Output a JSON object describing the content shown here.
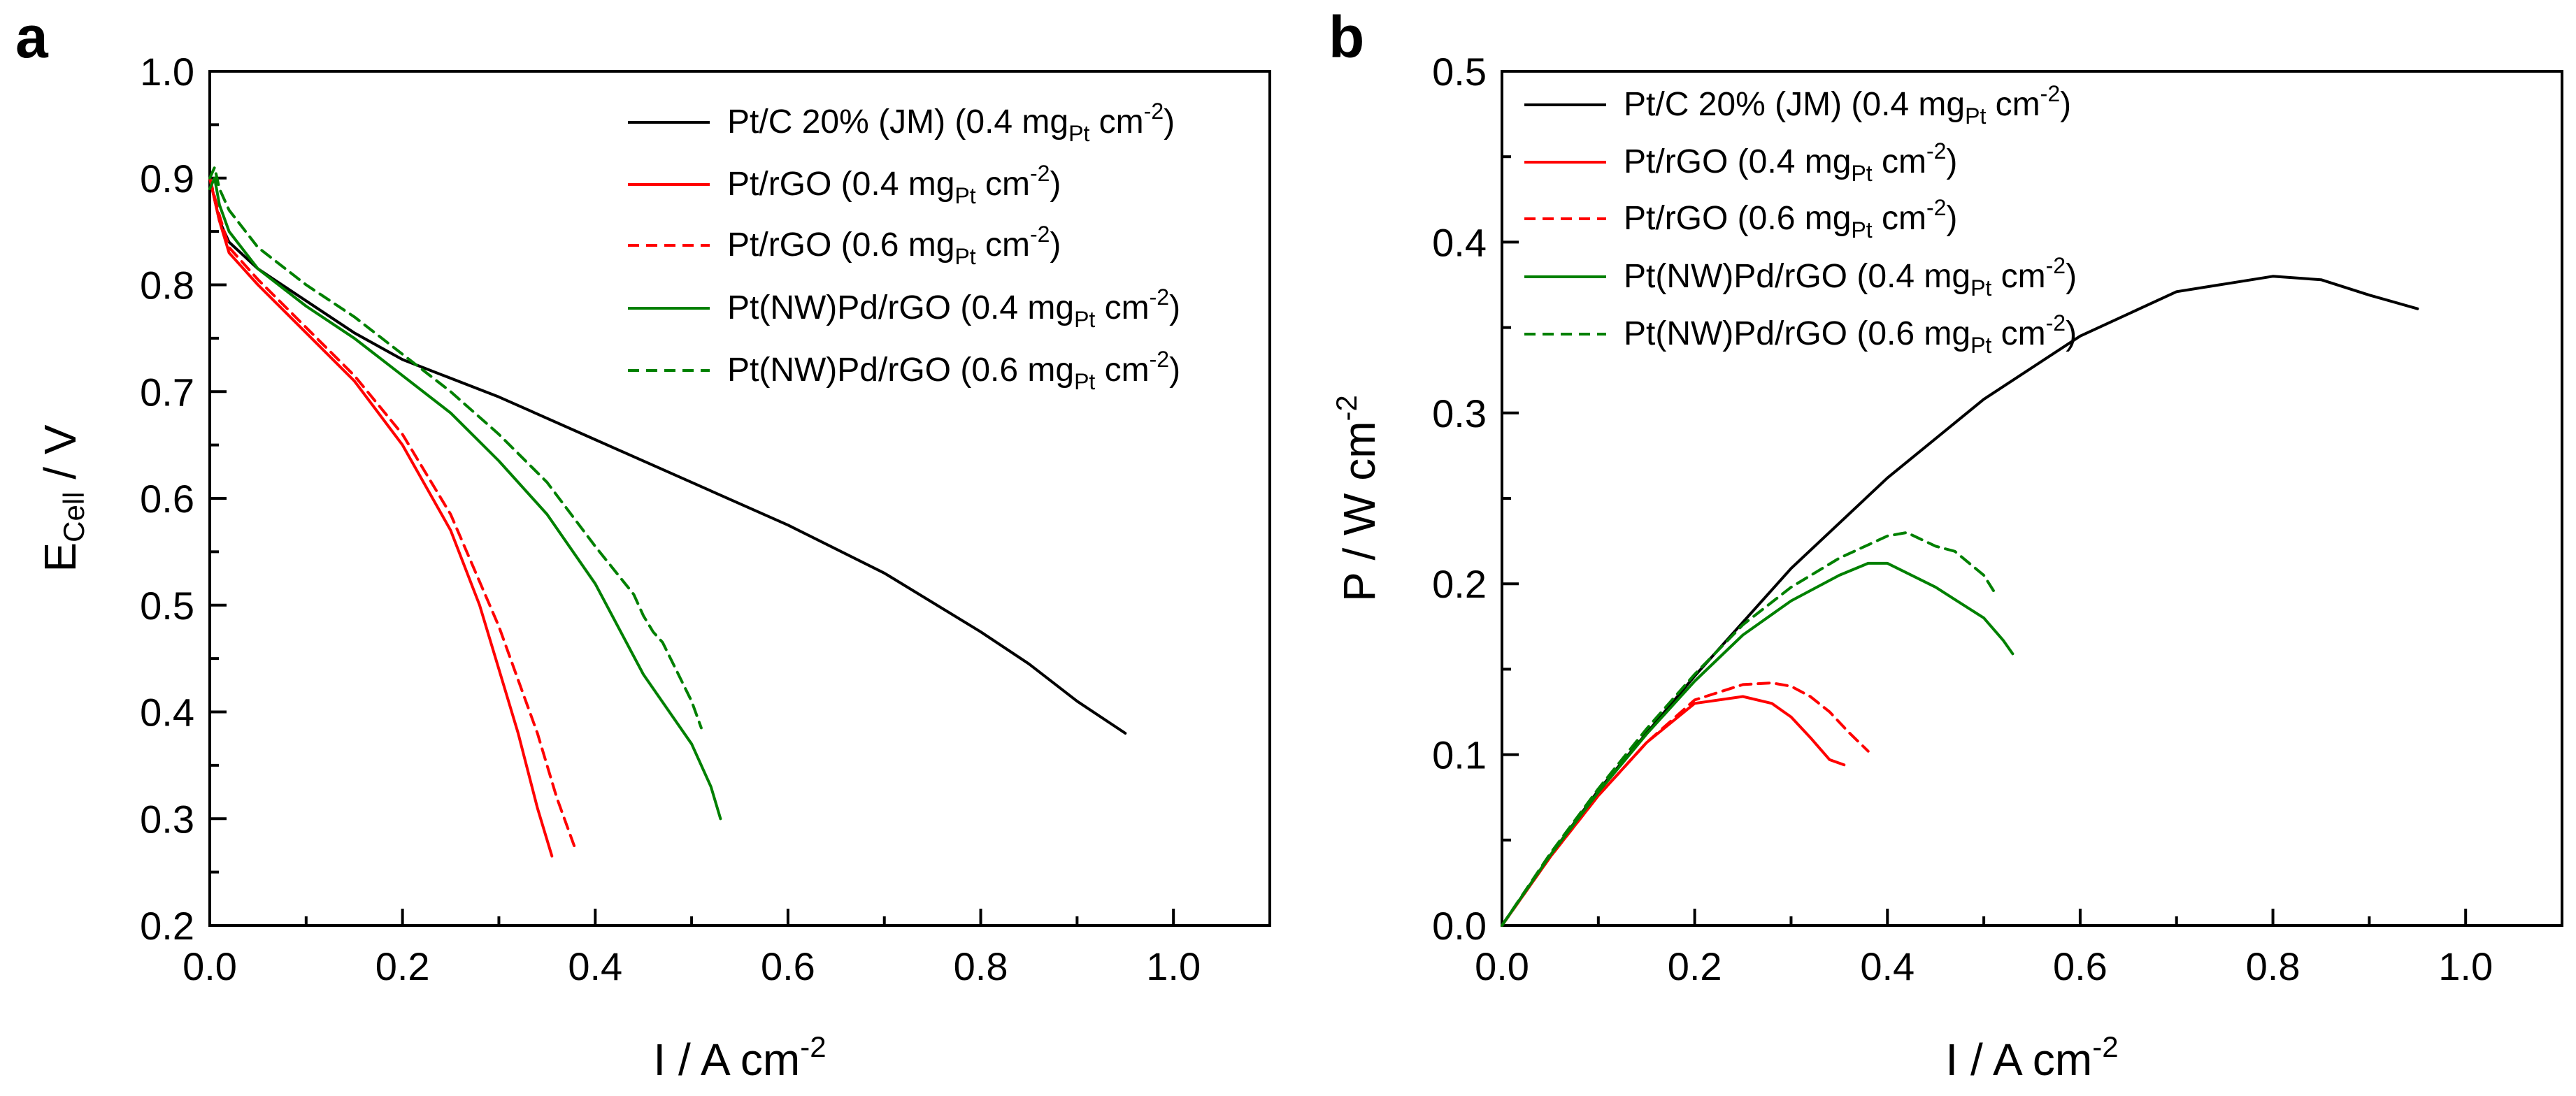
{
  "chart_data": [
    {
      "panel_label": "a",
      "type": "line",
      "xlabel": {
        "main": "I / A cm",
        "sup": "-2"
      },
      "ylabel": {
        "main": "E",
        "sub": "Cell",
        "rest": " / V"
      },
      "xlim": [
        0,
        1.1
      ],
      "ylim": [
        0.2,
        1.0
      ],
      "xticks": [
        0.0,
        0.2,
        0.4,
        0.6,
        0.8,
        1.0
      ],
      "xtick_labels": [
        "0.0",
        "0.2",
        "0.4",
        "0.6",
        "0.8",
        "1.0"
      ],
      "yticks": [
        0.2,
        0.3,
        0.4,
        0.5,
        0.6,
        0.7,
        0.8,
        0.9,
        1.0
      ],
      "ytick_labels": [
        "0.2",
        "0.3",
        "0.4",
        "0.5",
        "0.6",
        "0.7",
        "0.8",
        "0.9",
        "1.0"
      ],
      "grid": false,
      "legend_position": "top-right",
      "series": [
        {
          "name": "Pt/C 20% (JM) (0.4 mgPt cm-2)",
          "label_main": "Pt/C 20% (JM) (0.4 mg",
          "label_sub": "Pt",
          "label_tail": " cm",
          "label_sup": "-2",
          "label_end": ")",
          "color": "#000000",
          "dash": "solid",
          "x": [
            0.0,
            0.01,
            0.02,
            0.05,
            0.1,
            0.15,
            0.2,
            0.3,
            0.4,
            0.5,
            0.6,
            0.7,
            0.8,
            0.85,
            0.9,
            0.95
          ],
          "y": [
            0.9,
            0.86,
            0.84,
            0.815,
            0.785,
            0.755,
            0.73,
            0.695,
            0.655,
            0.615,
            0.575,
            0.53,
            0.475,
            0.445,
            0.41,
            0.38
          ]
        },
        {
          "name": "Pt/rGO (0.4 mgPt cm-2)",
          "label_main": "Pt/rGO (0.4 mg",
          "label_sub": "Pt",
          "label_tail": " cm",
          "label_sup": "-2",
          "label_end": ")",
          "color": "#ff0000",
          "dash": "solid",
          "x": [
            0.0,
            0.01,
            0.02,
            0.05,
            0.1,
            0.15,
            0.2,
            0.25,
            0.28,
            0.3,
            0.32,
            0.34,
            0.355
          ],
          "y": [
            0.9,
            0.86,
            0.83,
            0.8,
            0.755,
            0.71,
            0.65,
            0.57,
            0.5,
            0.44,
            0.38,
            0.31,
            0.265
          ]
        },
        {
          "name": "Pt/rGO (0.6 mgPt cm-2)",
          "label_main": "Pt/rGO (0.6 mg",
          "label_sub": "Pt",
          "label_tail": " cm",
          "label_sup": "-2",
          "label_end": ")",
          "color": "#ff0000",
          "dash": "dashed",
          "x": [
            0.0,
            0.01,
            0.02,
            0.05,
            0.1,
            0.15,
            0.2,
            0.25,
            0.3,
            0.32,
            0.34,
            0.36,
            0.38
          ],
          "y": [
            0.9,
            0.865,
            0.835,
            0.805,
            0.76,
            0.715,
            0.66,
            0.585,
            0.48,
            0.43,
            0.38,
            0.32,
            0.27
          ]
        },
        {
          "name": "Pt(NW)Pd/rGO (0.4 mgPt cm-2)",
          "label_main": "Pt(NW)Pd/rGO (0.4 mg",
          "label_sub": "Pt",
          "label_tail": " cm",
          "label_sup": "-2",
          "label_end": ")",
          "color": "#008000",
          "dash": "solid",
          "x": [
            0.0,
            0.005,
            0.01,
            0.02,
            0.05,
            0.1,
            0.15,
            0.2,
            0.25,
            0.3,
            0.35,
            0.4,
            0.45,
            0.5,
            0.52,
            0.53
          ],
          "y": [
            0.89,
            0.9,
            0.875,
            0.85,
            0.815,
            0.78,
            0.75,
            0.715,
            0.68,
            0.635,
            0.585,
            0.52,
            0.435,
            0.37,
            0.33,
            0.3
          ]
        },
        {
          "name": "Pt(NW)Pd/rGO (0.6 mgPt cm-2)",
          "label_main": "Pt(NW)Pd/rGO (0.6 mg",
          "label_sub": "Pt",
          "label_tail": " cm",
          "label_sup": "-2",
          "label_end": ")",
          "color": "#008000",
          "dash": "dashed",
          "x": [
            0.0,
            0.005,
            0.01,
            0.02,
            0.05,
            0.1,
            0.15,
            0.2,
            0.25,
            0.3,
            0.35,
            0.4,
            0.44,
            0.45,
            0.46,
            0.47,
            0.5,
            0.51
          ],
          "y": [
            0.9,
            0.91,
            0.89,
            0.87,
            0.835,
            0.8,
            0.77,
            0.735,
            0.7,
            0.66,
            0.615,
            0.555,
            0.51,
            0.49,
            0.475,
            0.465,
            0.41,
            0.385
          ]
        }
      ]
    },
    {
      "panel_label": "b",
      "type": "line",
      "xlabel": {
        "main": "I / A cm",
        "sup": "-2"
      },
      "ylabel": {
        "main": "P / W cm",
        "sup": "-2"
      },
      "xlim": [
        0,
        1.1
      ],
      "ylim": [
        0.0,
        0.5
      ],
      "xticks": [
        0.0,
        0.2,
        0.4,
        0.6,
        0.8,
        1.0
      ],
      "xtick_labels": [
        "0.0",
        "0.2",
        "0.4",
        "0.6",
        "0.8",
        "1.0"
      ],
      "yticks": [
        0.0,
        0.1,
        0.2,
        0.3,
        0.4,
        0.5
      ],
      "ytick_labels": [
        "0.0",
        "0.1",
        "0.2",
        "0.3",
        "0.4",
        "0.5"
      ],
      "grid": false,
      "legend_position": "top-left",
      "series": [
        {
          "name": "Pt/C 20% (JM) (0.4 mgPt cm-2)",
          "label_main": "Pt/C 20% (JM) (0.4 mg",
          "label_sub": "Pt",
          "label_tail": " cm",
          "label_sup": "-2",
          "label_end": ")",
          "color": "#000000",
          "dash": "solid",
          "x": [
            0.0,
            0.05,
            0.1,
            0.2,
            0.3,
            0.4,
            0.5,
            0.6,
            0.7,
            0.8,
            0.85,
            0.9,
            0.95
          ],
          "y": [
            0.0,
            0.041,
            0.079,
            0.146,
            0.209,
            0.262,
            0.308,
            0.345,
            0.371,
            0.38,
            0.378,
            0.369,
            0.361
          ]
        },
        {
          "name": "Pt/rGO (0.4 mgPt cm-2)",
          "label_main": "Pt/rGO (0.4 mg",
          "label_sub": "Pt",
          "label_tail": " cm",
          "label_sup": "-2",
          "label_end": ")",
          "color": "#ff0000",
          "dash": "solid",
          "x": [
            0.0,
            0.05,
            0.1,
            0.15,
            0.2,
            0.25,
            0.28,
            0.3,
            0.32,
            0.34,
            0.355
          ],
          "y": [
            0.0,
            0.04,
            0.076,
            0.107,
            0.13,
            0.134,
            0.13,
            0.122,
            0.11,
            0.097,
            0.094
          ]
        },
        {
          "name": "Pt/rGO (0.6 mgPt cm-2)",
          "label_main": "Pt/rGO (0.6 mg",
          "label_sub": "Pt",
          "label_tail": " cm",
          "label_sup": "-2",
          "label_end": ")",
          "color": "#ff0000",
          "dash": "dashed",
          "x": [
            0.0,
            0.05,
            0.1,
            0.15,
            0.2,
            0.25,
            0.28,
            0.3,
            0.32,
            0.34,
            0.36,
            0.38
          ],
          "y": [
            0.0,
            0.04,
            0.076,
            0.107,
            0.132,
            0.141,
            0.142,
            0.14,
            0.134,
            0.125,
            0.113,
            0.102
          ]
        },
        {
          "name": "Pt(NW)Pd/rGO (0.4 mgPt cm-2)",
          "label_main": "Pt(NW)Pd/rGO (0.4 mg",
          "label_sub": "Pt",
          "label_tail": " cm",
          "label_sup": "-2",
          "label_end": ")",
          "color": "#008000",
          "dash": "solid",
          "x": [
            0.0,
            0.05,
            0.1,
            0.15,
            0.2,
            0.25,
            0.3,
            0.35,
            0.38,
            0.4,
            0.45,
            0.5,
            0.52,
            0.53
          ],
          "y": [
            0.0,
            0.041,
            0.078,
            0.112,
            0.143,
            0.17,
            0.19,
            0.205,
            0.212,
            0.212,
            0.198,
            0.18,
            0.167,
            0.159
          ]
        },
        {
          "name": "Pt(NW)Pd/rGO (0.6 mgPt cm-2)",
          "label_main": "Pt(NW)Pd/rGO (0.6 mg",
          "label_sub": "Pt",
          "label_tail": " cm",
          "label_sup": "-2",
          "label_end": ")",
          "color": "#008000",
          "dash": "dashed",
          "x": [
            0.0,
            0.05,
            0.1,
            0.15,
            0.2,
            0.25,
            0.3,
            0.35,
            0.4,
            0.42,
            0.45,
            0.47,
            0.5,
            0.51
          ],
          "y": [
            0.0,
            0.042,
            0.08,
            0.115,
            0.147,
            0.176,
            0.198,
            0.215,
            0.228,
            0.23,
            0.222,
            0.219,
            0.205,
            0.196
          ]
        }
      ]
    }
  ]
}
